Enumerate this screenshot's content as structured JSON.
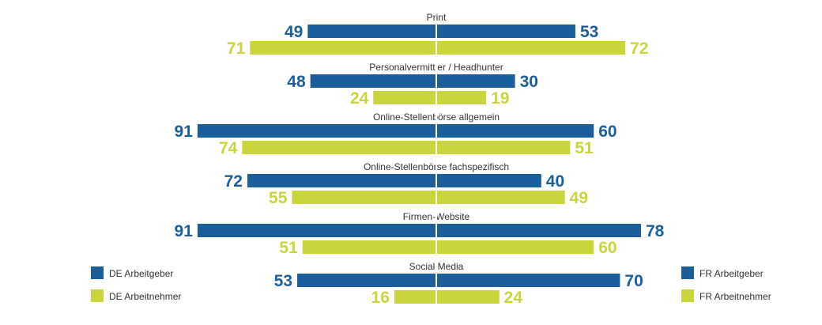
{
  "chart_data": {
    "type": "bar",
    "orientation": "horizontal-butterfly",
    "categories": [
      "Print",
      "Personalvermittler / Headhunter",
      "Online-Stellenbörse allgemein",
      "Online-Stellenbörse fachspezifisch",
      "Firmen-Website",
      "Social Media"
    ],
    "series": [
      {
        "name": "DE Arbeitgeber",
        "side": "left",
        "color": "#1a5f9b",
        "values": [
          49,
          48,
          91,
          72,
          91,
          53
        ]
      },
      {
        "name": "DE Arbeitnehmer",
        "side": "left",
        "color": "#c9d53b",
        "values": [
          71,
          24,
          74,
          55,
          51,
          16
        ]
      },
      {
        "name": "FR Arbeitgeber",
        "side": "right",
        "color": "#1a5f9b",
        "values": [
          53,
          30,
          60,
          40,
          78,
          70
        ]
      },
      {
        "name": "FR Arbeitnehmer",
        "side": "right",
        "color": "#c9d53b",
        "values": [
          72,
          19,
          51,
          49,
          60,
          24
        ]
      }
    ],
    "data_labels": true,
    "grid": false,
    "legend": {
      "left": [
        "DE Arbeitgeber",
        "DE Arbeitnehmer"
      ],
      "right": [
        "FR Arbeitgeber",
        "FR Arbeitnehmer"
      ]
    }
  }
}
